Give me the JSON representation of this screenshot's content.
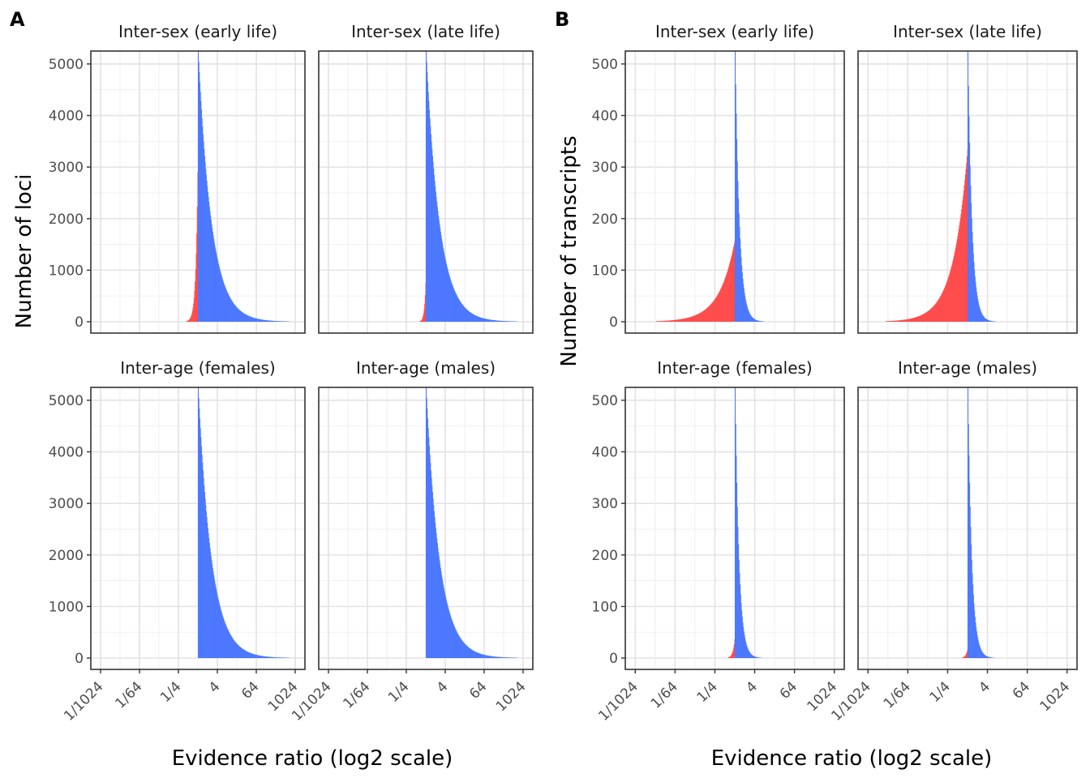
{
  "colors": {
    "pos": "#4d79ff",
    "neg": "#ff4d4d"
  },
  "chart_data": [
    {
      "panel": "A",
      "type": "histogram",
      "ylabel": "Number of loci",
      "xlabel": "Evidence ratio (log2 scale)",
      "ylim": [
        0,
        5250
      ],
      "y_ticks": [
        0,
        1000,
        2000,
        3000,
        4000,
        5000
      ],
      "y_tick_labels": [
        "0",
        "1000",
        "2000",
        "3000",
        "4000",
        "5000"
      ],
      "x_range_log2": [
        -11,
        11
      ],
      "x_ticks_log2": [
        -10,
        -6,
        -2,
        2,
        6,
        10
      ],
      "x_tick_labels": [
        "1/1024",
        "1/64",
        "1/4",
        "4",
        "64",
        "1024"
      ],
      "facets": [
        {
          "title": "Inter-sex (early life)",
          "neg": {
            "lo": -3.4,
            "peak": 3600,
            "decay": 0.22
          },
          "pos": {
            "hi": 10.5,
            "peak": 5250,
            "decay": 1.35
          }
        },
        {
          "title": "Inter-sex (late life)",
          "neg": {
            "lo": -1.8,
            "peak": 1000,
            "decay": 0.15
          },
          "pos": {
            "hi": 10.5,
            "peak": 5250,
            "decay": 1.35
          }
        },
        {
          "title": "Inter-age (females)",
          "neg": {
            "lo": 0,
            "peak": 0,
            "decay": 0.1
          },
          "pos": {
            "hi": 10.5,
            "peak": 5250,
            "decay": 1.35
          }
        },
        {
          "title": "Inter-age (males)",
          "neg": {
            "lo": 0,
            "peak": 0,
            "decay": 0.1
          },
          "pos": {
            "hi": 10.5,
            "peak": 5250,
            "decay": 1.35
          }
        }
      ]
    },
    {
      "panel": "B",
      "type": "histogram",
      "ylabel": "Number of transcripts",
      "xlabel": "Evidence ratio (log2 scale)",
      "ylim": [
        0,
        525
      ],
      "y_ticks": [
        0,
        100,
        200,
        300,
        400,
        500
      ],
      "y_tick_labels": [
        "0",
        "100",
        "200",
        "300",
        "400",
        "500"
      ],
      "x_range_log2": [
        -11,
        11
      ],
      "x_ticks_log2": [
        -10,
        -6,
        -2,
        2,
        6,
        10
      ],
      "x_tick_labels": [
        "1/1024",
        "1/64",
        "1/4",
        "4",
        "64",
        "1024"
      ],
      "facets": [
        {
          "title": "Inter-sex (early life)",
          "neg": {
            "lo": -8.5,
            "peak": 160,
            "decay": 0.55
          },
          "pos": {
            "hi": 10.5,
            "peak": 525,
            "decay": 0.42
          }
        },
        {
          "title": "Inter-sex (late life)",
          "neg": {
            "lo": -8.5,
            "peak": 340,
            "decay": 0.5
          },
          "pos": {
            "hi": 10.5,
            "peak": 525,
            "decay": 0.4
          }
        },
        {
          "title": "Inter-age (females)",
          "neg": {
            "lo": -0.7,
            "peak": 45,
            "decay": 0.2
          },
          "pos": {
            "hi": 10.5,
            "peak": 525,
            "decay": 0.38
          }
        },
        {
          "title": "Inter-age (males)",
          "neg": {
            "lo": -0.7,
            "peak": 20,
            "decay": 0.2
          },
          "pos": {
            "hi": 10.5,
            "peak": 525,
            "decay": 0.38
          }
        }
      ]
    }
  ]
}
